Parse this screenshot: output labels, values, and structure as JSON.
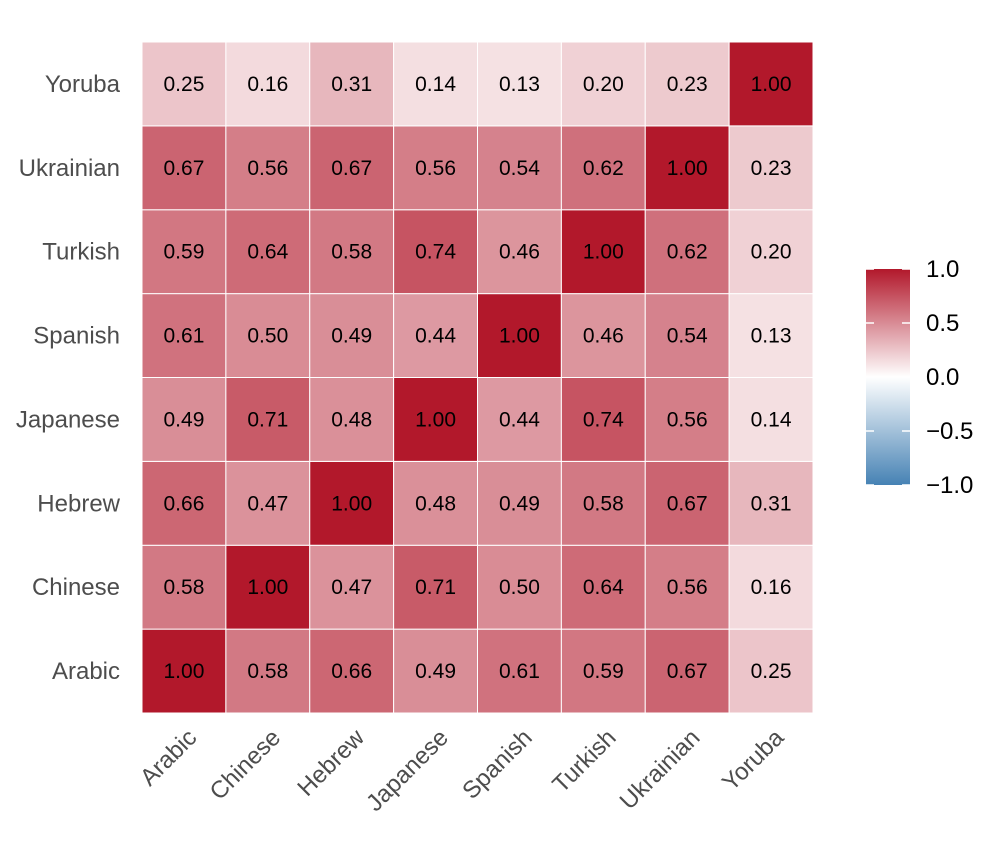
{
  "chart_data": {
    "type": "heatmap",
    "title": "",
    "xlabel": "",
    "ylabel": "",
    "x_categories": [
      "Arabic",
      "Chinese",
      "Hebrew",
      "Japanese",
      "Spanish",
      "Turkish",
      "Ukrainian",
      "Yoruba"
    ],
    "y_categories": [
      "Arabic",
      "Chinese",
      "Hebrew",
      "Japanese",
      "Spanish",
      "Turkish",
      "Ukrainian",
      "Yoruba"
    ],
    "matrix": [
      [
        1.0,
        0.58,
        0.66,
        0.49,
        0.61,
        0.59,
        0.67,
        0.25
      ],
      [
        0.58,
        1.0,
        0.47,
        0.71,
        0.5,
        0.64,
        0.56,
        0.16
      ],
      [
        0.66,
        0.47,
        1.0,
        0.48,
        0.49,
        0.58,
        0.67,
        0.31
      ],
      [
        0.49,
        0.71,
        0.48,
        1.0,
        0.44,
        0.74,
        0.56,
        0.14
      ],
      [
        0.61,
        0.5,
        0.49,
        0.44,
        1.0,
        0.46,
        0.54,
        0.13
      ],
      [
        0.59,
        0.64,
        0.58,
        0.74,
        0.46,
        1.0,
        0.62,
        0.2
      ],
      [
        0.67,
        0.56,
        0.67,
        0.56,
        0.54,
        0.62,
        1.0,
        0.23
      ],
      [
        0.25,
        0.16,
        0.31,
        0.14,
        0.13,
        0.2,
        0.23,
        1.0
      ]
    ],
    "color_scale": {
      "min": -1.0,
      "max": 1.0,
      "low_color": "#4682b4",
      "mid_color": "#ffffff",
      "high_color": "#b2182b"
    },
    "legend": {
      "position": "right",
      "ticks": [
        1.0,
        0.5,
        0.0,
        -0.5,
        -1.0
      ],
      "tick_labels": [
        "1.0",
        "0.5",
        "0.0",
        "−0.5",
        "−1.0"
      ]
    }
  }
}
